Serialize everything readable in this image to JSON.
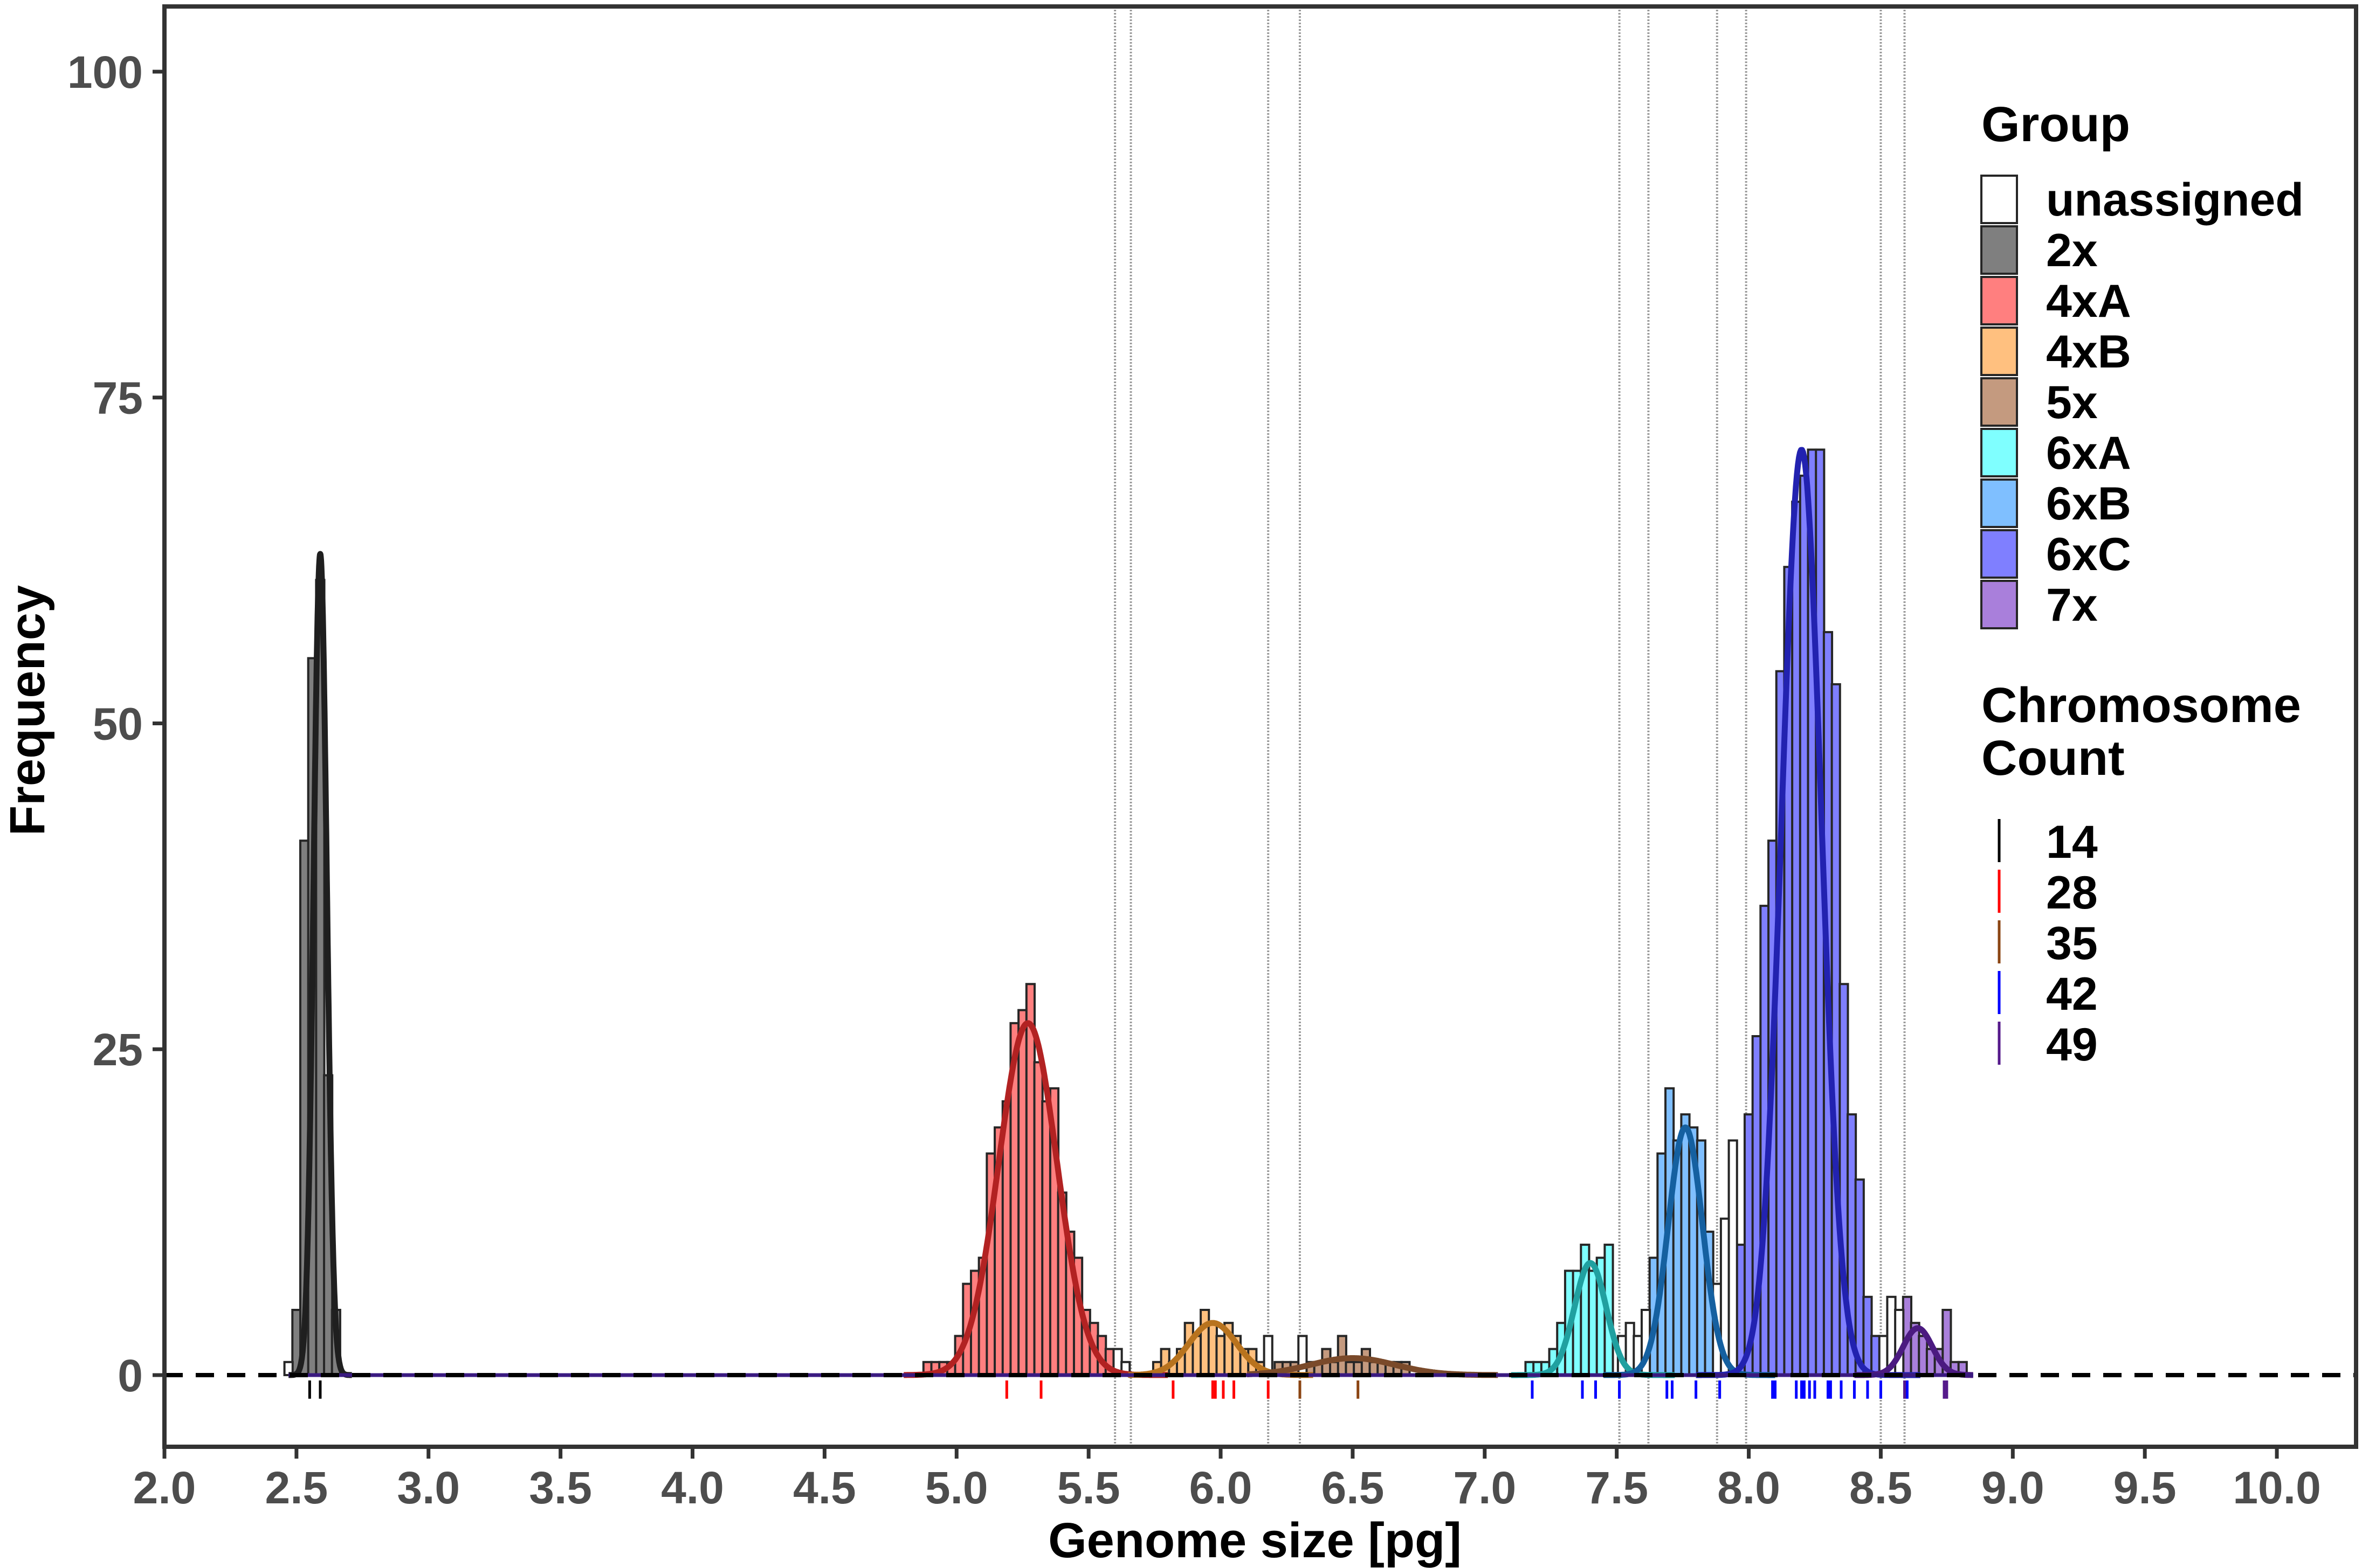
{
  "chart_data": {
    "type": "bar",
    "xlabel": "Genome size [pg]",
    "ylabel": "Frequency",
    "xlim": [
      2.0,
      10.3
    ],
    "ylim": [
      -5.5,
      105
    ],
    "x_ticks": [
      "2.0",
      "2.5",
      "3.0",
      "3.5",
      "4.0",
      "4.5",
      "5.0",
      "5.5",
      "6.0",
      "6.5",
      "7.0",
      "7.5",
      "8.0",
      "8.5",
      "9.0",
      "9.5",
      "10.0"
    ],
    "y_ticks": [
      "0",
      "25",
      "50",
      "75",
      "100"
    ],
    "bin_width": 0.031,
    "reference_line_y": 0,
    "grid": false,
    "legend_position": "right",
    "group_legend": {
      "title": "Group",
      "entries": [
        {
          "label": "unassigned",
          "fill": "#ffffff"
        },
        {
          "label": "2x",
          "fill": "#7f7f7f"
        },
        {
          "label": "4xA",
          "fill": "#ff7f7f"
        },
        {
          "label": "4xB",
          "fill": "#ffc07f"
        },
        {
          "label": "5x",
          "fill": "#c49a7f"
        },
        {
          "label": "6xA",
          "fill": "#7fffff"
        },
        {
          "label": "6xB",
          "fill": "#7fbfff"
        },
        {
          "label": "6xC",
          "fill": "#7f7fff"
        },
        {
          "label": "7x",
          "fill": "#a97fdb"
        }
      ]
    },
    "count_legend": {
      "title_lines": [
        "Chromosome",
        "Count"
      ],
      "entries": [
        {
          "label": "14",
          "color": "#000000"
        },
        {
          "label": "28",
          "color": "#ff0000"
        },
        {
          "label": "35",
          "color": "#8b4513"
        },
        {
          "label": "42",
          "color": "#0000ff"
        },
        {
          "label": "49",
          "color": "#551a8b"
        }
      ]
    },
    "bars": [
      {
        "group": "2x",
        "x": [
          2.5,
          2.53,
          2.56,
          2.59,
          2.62,
          2.65
        ],
        "y": [
          5,
          41,
          55,
          61,
          23,
          5
        ]
      },
      {
        "group": "4xA",
        "x": [
          4.89,
          4.92,
          4.95,
          4.98,
          5.01,
          5.04,
          5.07,
          5.1,
          5.13,
          5.16,
          5.19,
          5.22,
          5.25,
          5.28,
          5.31,
          5.34,
          5.37,
          5.4,
          5.43,
          5.46,
          5.49,
          5.52,
          5.55,
          5.58
        ],
        "y": [
          1,
          1,
          1,
          1,
          3,
          7,
          8,
          9,
          17,
          19,
          21,
          27,
          28,
          30,
          24,
          21,
          22,
          14,
          11,
          9,
          5,
          4,
          3,
          2
        ]
      },
      {
        "group": "4xB",
        "x": [
          5.76,
          5.79,
          5.82,
          5.85,
          5.88,
          5.91,
          5.94,
          5.97,
          6.0,
          6.03,
          6.06,
          6.09,
          6.12,
          6.15
        ],
        "y": [
          1,
          2,
          1,
          2,
          4,
          3,
          5,
          4,
          3,
          4,
          3,
          2,
          2,
          1
        ]
      },
      {
        "group": "5x",
        "x": [
          6.22,
          6.25,
          6.28,
          6.34,
          6.37,
          6.4,
          6.43,
          6.46,
          6.49,
          6.52,
          6.55,
          6.58,
          6.61,
          6.64,
          6.67,
          6.7
        ],
        "y": [
          1,
          1,
          1,
          1,
          1,
          2,
          1,
          3,
          1,
          1,
          2,
          1,
          1,
          1,
          1,
          1
        ]
      },
      {
        "group": "6xA",
        "x": [
          7.17,
          7.2,
          7.23,
          7.26,
          7.29,
          7.32,
          7.35,
          7.38,
          7.41,
          7.44,
          7.47
        ],
        "y": [
          1,
          1,
          1,
          2,
          4,
          8,
          8,
          10,
          8,
          9,
          10
        ]
      },
      {
        "group": "6xB",
        "x": [
          7.64,
          7.67,
          7.7,
          7.73,
          7.76,
          7.79,
          7.82,
          7.85
        ],
        "y": [
          9,
          17,
          22,
          18,
          20,
          19,
          18,
          11
        ]
      },
      {
        "group": "6xC",
        "x": [
          7.97,
          8.0,
          8.03,
          8.06,
          8.09,
          8.12,
          8.15,
          8.18,
          8.21,
          8.24,
          8.27,
          8.3,
          8.33,
          8.36,
          8.39,
          8.42,
          8.45,
          8.48
        ],
        "y": [
          10,
          20,
          26,
          36,
          41,
          54,
          62,
          67,
          69,
          71,
          71,
          57,
          53,
          30,
          20,
          15,
          6,
          3
        ]
      },
      {
        "group": "7x",
        "x": [
          8.6,
          8.63,
          8.66,
          8.69,
          8.72,
          8.75,
          8.78,
          8.81
        ],
        "y": [
          6,
          4,
          3,
          2,
          2,
          5,
          1,
          1
        ]
      },
      {
        "group": "unassigned",
        "x": [
          2.47,
          5.61,
          5.64,
          6.18,
          6.31,
          7.52,
          7.55,
          7.58,
          7.61,
          7.88,
          7.91,
          7.94,
          8.51,
          8.54,
          8.57
        ],
        "y": [
          1,
          2,
          1,
          3,
          3,
          3,
          4,
          3,
          5,
          7,
          12,
          18,
          3,
          6,
          5
        ]
      }
    ],
    "density_curves": [
      {
        "group": "2x",
        "color": "#1f1f1f",
        "x_range": [
          2.47,
          2.71
        ],
        "mean": 2.59,
        "sd": 0.025,
        "peak": 63
      },
      {
        "group": "4xA",
        "color": "#b22222",
        "x_range": [
          4.8,
          5.8
        ],
        "mean": 5.27,
        "sd": 0.11,
        "peak": 27
      },
      {
        "group": "4xB",
        "color": "#b8731e",
        "x_range": [
          5.65,
          6.35
        ],
        "mean": 5.97,
        "sd": 0.09,
        "peak": 4
      },
      {
        "group": "5x",
        "color": "#7a4a2a",
        "x_range": [
          6.1,
          7.05
        ],
        "mean": 6.5,
        "sd": 0.16,
        "peak": 1.3
      },
      {
        "group": "6xA",
        "color": "#20a0a0",
        "x_range": [
          7.1,
          7.72
        ],
        "mean": 7.4,
        "sd": 0.06,
        "peak": 8.6
      },
      {
        "group": "6xB",
        "color": "#1560a0",
        "x_range": [
          7.45,
          8.1
        ],
        "mean": 7.76,
        "sd": 0.065,
        "peak": 19
      },
      {
        "group": "6xC",
        "color": "#2222b0",
        "x_range": [
          7.8,
          8.65
        ],
        "mean": 8.2,
        "sd": 0.075,
        "peak": 71
      },
      {
        "group": "7x",
        "color": "#4b1a80",
        "x_range": [
          8.4,
          8.85
        ],
        "mean": 8.64,
        "sd": 0.055,
        "peak": 3.6
      }
    ],
    "dotted_vertical_lines_x": [
      5.6,
      5.66,
      6.18,
      6.3,
      7.51,
      7.62,
      7.88,
      7.99,
      8.5,
      8.59
    ],
    "rug": [
      {
        "count": "14",
        "color": "#000000",
        "x": [
          2.55,
          2.59
        ]
      },
      {
        "count": "28",
        "color": "#ff0000",
        "x": [
          5.19,
          5.32,
          5.82,
          5.97,
          5.98,
          6.01,
          6.05,
          6.18
        ]
      },
      {
        "count": "35",
        "color": "#8b4513",
        "x": [
          6.3,
          6.52
        ]
      },
      {
        "count": "42",
        "color": "#0000ff",
        "x": [
          7.18,
          7.37,
          7.42,
          7.51,
          7.69,
          7.71,
          7.8,
          7.89,
          8.09,
          8.1,
          8.18,
          8.2,
          8.21,
          8.23,
          8.25,
          8.3,
          8.31,
          8.35,
          8.4,
          8.45,
          8.5,
          8.6
        ]
      },
      {
        "count": "49",
        "color": "#551a8b",
        "x": [
          8.59,
          8.74,
          8.75
        ]
      }
    ]
  }
}
